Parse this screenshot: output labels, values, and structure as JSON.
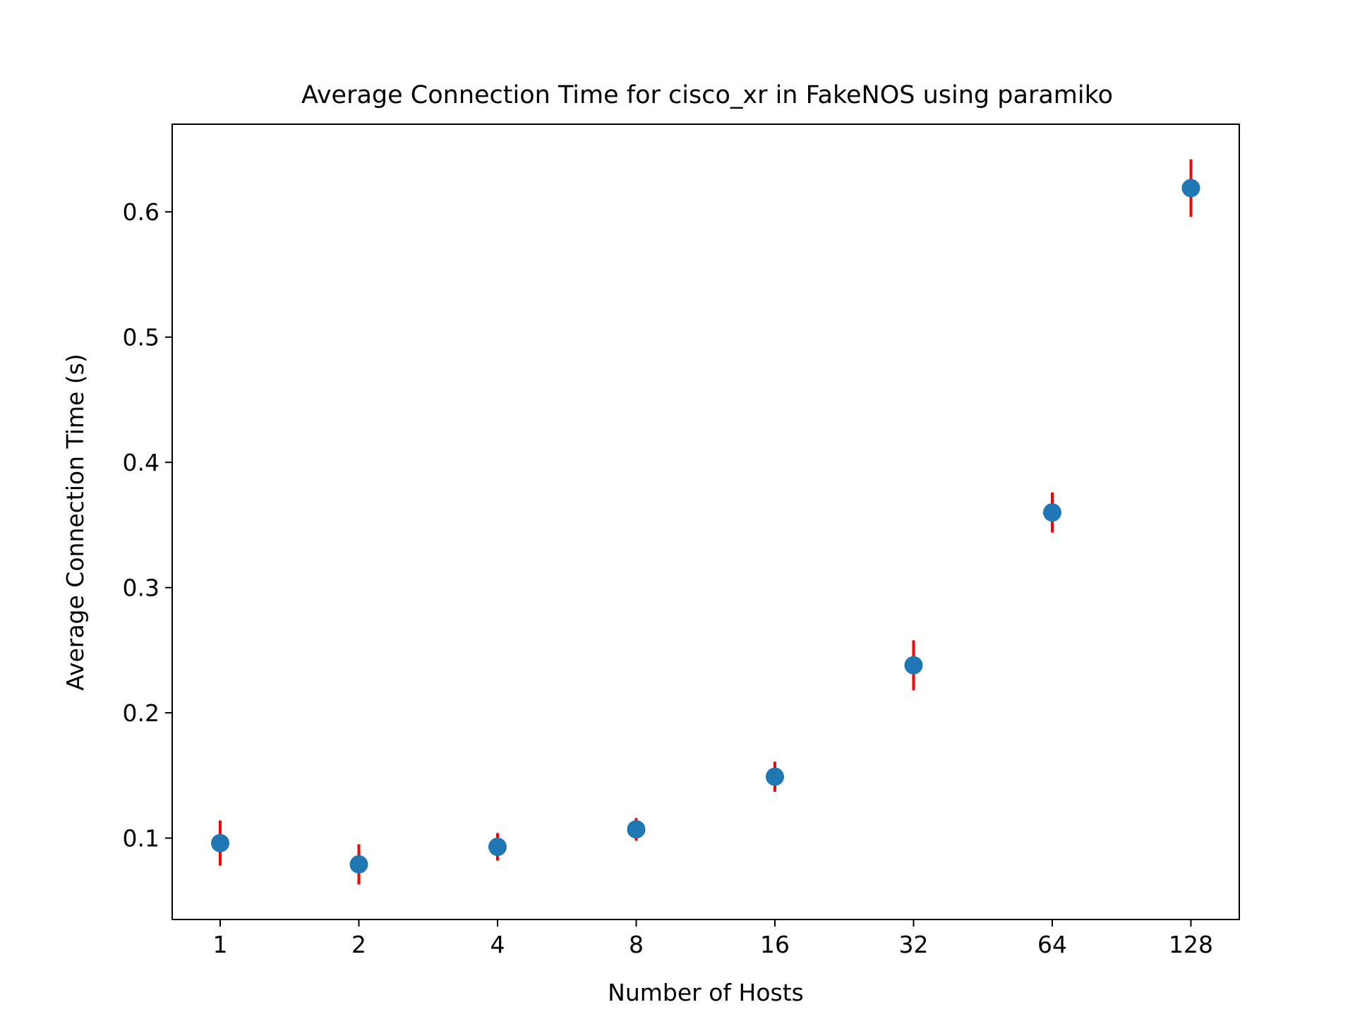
{
  "chart_data": {
    "type": "scatter",
    "title": "Average Connection Time for cisco_xr in FakeNOS using paramiko",
    "xlabel": "Number of Hosts",
    "ylabel": "Average Connection Time (s)",
    "x_scale": "log2",
    "x_ticks": [
      "1",
      "2",
      "4",
      "8",
      "16",
      "32",
      "64",
      "128"
    ],
    "y_ticks": [
      "0.1",
      "0.2",
      "0.3",
      "0.4",
      "0.5",
      "0.6"
    ],
    "ylim": [
      0.035,
      0.67
    ],
    "grid": false,
    "legend": "none",
    "point_color": "#1f77b4",
    "error_color": "#ff0000",
    "series": [
      {
        "x": [
          1,
          2,
          4,
          8,
          16,
          32,
          64,
          128
        ],
        "y": [
          0.096,
          0.079,
          0.093,
          0.107,
          0.149,
          0.238,
          0.36,
          0.619
        ],
        "error": [
          0.018,
          0.016,
          0.011,
          0.009,
          0.012,
          0.02,
          0.016,
          0.023
        ]
      }
    ]
  }
}
